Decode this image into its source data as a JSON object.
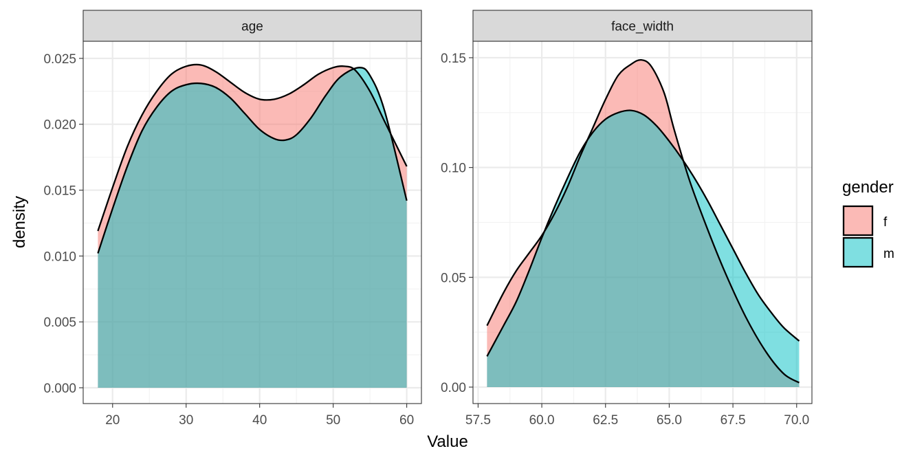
{
  "chart_data": {
    "type": "area",
    "chart_kind": "faceted density plot",
    "xlabel": "Value",
    "ylabel": "density",
    "grid": true,
    "legend": {
      "title": "gender",
      "placement": "right",
      "entries": [
        {
          "label": "f",
          "color": "#F8766D"
        },
        {
          "label": "m",
          "color": "#00BFC4"
        }
      ]
    },
    "overlap_color": "#7FBBB8",
    "panels": [
      {
        "strip": "age",
        "xlim": [
          16,
          62
        ],
        "ylim": [
          -0.0012,
          0.0263
        ],
        "x_ticks": [
          20,
          30,
          40,
          50,
          60
        ],
        "x_tick_labels": [
          "20",
          "30",
          "40",
          "50",
          "60"
        ],
        "y_ticks": [
          0,
          0.005,
          0.01,
          0.015,
          0.02,
          0.025
        ],
        "y_tick_labels": [
          "0.000",
          "0.005",
          "0.010",
          "0.015",
          "0.020",
          "0.025"
        ],
        "series": [
          {
            "name": "f",
            "x": [
              18,
              20,
              22,
              24,
              26,
              28,
              30,
              32,
              34,
              36,
              38,
              40,
              42,
              44,
              46,
              48,
              50,
              51.5,
              53,
              55,
              57,
              60
            ],
            "values": [
              0.0119,
              0.0152,
              0.0183,
              0.0207,
              0.0225,
              0.0238,
              0.0244,
              0.0245,
              0.024,
              0.0232,
              0.0224,
              0.0219,
              0.0219,
              0.0223,
              0.023,
              0.0238,
              0.0243,
              0.0244,
              0.0241,
              0.0225,
              0.0202,
              0.0168
            ]
          },
          {
            "name": "m",
            "x": [
              18,
              20,
              22,
              24,
              26,
              28,
              30,
              32,
              34,
              36,
              38,
              40,
              42,
              43.5,
              45,
              47,
              49,
              51,
              53.5,
              55,
              57,
              60
            ],
            "values": [
              0.0102,
              0.0136,
              0.0168,
              0.0195,
              0.0213,
              0.0225,
              0.023,
              0.0231,
              0.0228,
              0.022,
              0.0208,
              0.0196,
              0.0189,
              0.0188,
              0.0192,
              0.0205,
              0.0222,
              0.0236,
              0.0243,
              0.0237,
              0.021,
              0.0142
            ]
          }
        ]
      },
      {
        "strip": "face_width",
        "xlim": [
          57.3,
          70.6
        ],
        "ylim": [
          -0.0075,
          0.1575
        ],
        "x_ticks": [
          57.5,
          60,
          62.5,
          65,
          67.5,
          70
        ],
        "x_tick_labels": [
          "57.5",
          "60.0",
          "62.5",
          "65.0",
          "67.5",
          "70.0"
        ],
        "y_ticks": [
          0,
          0.05,
          0.1,
          0.15
        ],
        "y_tick_labels": [
          "0.00",
          "0.05",
          "0.10",
          "0.15"
        ],
        "series": [
          {
            "name": "f",
            "x": [
              57.85,
              58.5,
              59,
              59.5,
              60,
              60.5,
              61,
              61.5,
              62,
              62.5,
              63,
              63.5,
              63.9,
              64.3,
              64.8,
              65.2,
              65.8,
              66.5,
              67.2,
              68,
              68.8,
              69.5,
              70.1
            ],
            "values": [
              0.028,
              0.043,
              0.053,
              0.061,
              0.069,
              0.079,
              0.091,
              0.105,
              0.118,
              0.131,
              0.142,
              0.147,
              0.149,
              0.146,
              0.134,
              0.117,
              0.094,
              0.072,
              0.052,
              0.032,
              0.016,
              0.006,
              0.002
            ]
          },
          {
            "name": "m",
            "x": [
              57.85,
              58.5,
              59,
              59.5,
              60,
              60.5,
              61,
              61.5,
              62,
              62.5,
              63,
              63.5,
              64,
              64.5,
              65,
              65.5,
              66,
              66.5,
              67,
              67.5,
              68,
              68.5,
              69,
              69.5,
              70.1
            ],
            "values": [
              0.014,
              0.028,
              0.039,
              0.053,
              0.068,
              0.082,
              0.095,
              0.107,
              0.116,
              0.122,
              0.125,
              0.126,
              0.124,
              0.119,
              0.112,
              0.104,
              0.095,
              0.085,
              0.074,
              0.063,
              0.052,
              0.042,
              0.034,
              0.027,
              0.021
            ]
          }
        ]
      }
    ]
  }
}
